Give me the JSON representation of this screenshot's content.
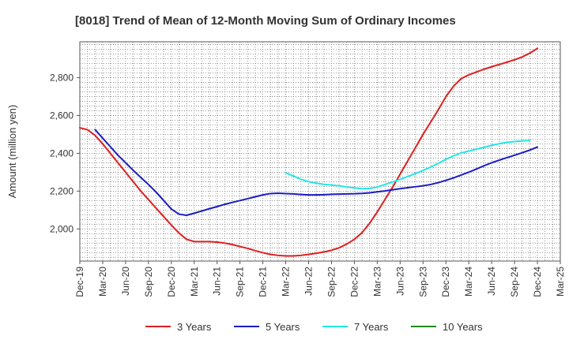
{
  "chart_data": {
    "type": "line",
    "title": "[8018]  Trend of Mean of 12-Month Moving Sum of Ordinary Incomes",
    "xlabel": "",
    "ylabel": "Amount (million yen)",
    "ylim": [
      1830,
      2990
    ],
    "yticks": [
      2000,
      2200,
      2400,
      2600,
      2800
    ],
    "ytick_labels": [
      "2,000",
      "2,200",
      "2,400",
      "2,600",
      "2,800"
    ],
    "xticks": [
      "Dec-19",
      "Mar-20",
      "Jun-20",
      "Sep-20",
      "Dec-20",
      "Mar-21",
      "Jun-21",
      "Sep-21",
      "Dec-21",
      "Mar-22",
      "Jun-22",
      "Sep-22",
      "Dec-22",
      "Mar-23",
      "Jun-23",
      "Sep-23",
      "Dec-23",
      "Mar-24",
      "Jun-24",
      "Sep-24",
      "Dec-24",
      "Mar-25"
    ],
    "grid": true,
    "legend_position": "bottom",
    "series": [
      {
        "name": "3 Years",
        "color": "#dd1f1f",
        "start_month": 0,
        "values": [
          2535,
          2525,
          2495,
          2450,
          2400,
          2350,
          2300,
          2250,
          2200,
          2155,
          2110,
          2065,
          2020,
          1978,
          1945,
          1933,
          1933,
          1933,
          1930,
          1925,
          1917,
          1907,
          1897,
          1885,
          1874,
          1865,
          1860,
          1857,
          1857,
          1860,
          1865,
          1871,
          1878,
          1887,
          1900,
          1920,
          1945,
          1980,
          2030,
          2090,
          2155,
          2220,
          2290,
          2360,
          2430,
          2500,
          2565,
          2630,
          2700,
          2755,
          2795,
          2815,
          2830,
          2845,
          2858,
          2870,
          2882,
          2895,
          2910,
          2930,
          2955
        ]
      },
      {
        "name": "5 Years",
        "color": "#1c1cc0",
        "start_month": 2,
        "values": [
          2525,
          2480,
          2435,
          2390,
          2350,
          2310,
          2272,
          2235,
          2195,
          2150,
          2105,
          2078,
          2072,
          2083,
          2095,
          2107,
          2118,
          2130,
          2140,
          2150,
          2160,
          2170,
          2180,
          2187,
          2189,
          2187,
          2185,
          2182,
          2180,
          2180,
          2181,
          2183,
          2184,
          2185,
          2186,
          2188,
          2191,
          2196,
          2201,
          2207,
          2213,
          2218,
          2223,
          2228,
          2235,
          2245,
          2257,
          2270,
          2285,
          2300,
          2317,
          2334,
          2350,
          2364,
          2377,
          2390,
          2403,
          2417,
          2433
        ]
      },
      {
        "name": "7 Years",
        "color": "#22e6e6",
        "start_month": 27,
        "values": [
          2297,
          2280,
          2262,
          2250,
          2242,
          2236,
          2232,
          2228,
          2222,
          2217,
          2213,
          2214,
          2222,
          2235,
          2248,
          2262,
          2277,
          2293,
          2309,
          2327,
          2347,
          2368,
          2387,
          2402,
          2412,
          2422,
          2432,
          2442,
          2451,
          2458,
          2462,
          2466,
          2468
        ]
      },
      {
        "name": "10 Years",
        "color": "#1e8a1e",
        "start_month": 0,
        "values": []
      }
    ]
  }
}
